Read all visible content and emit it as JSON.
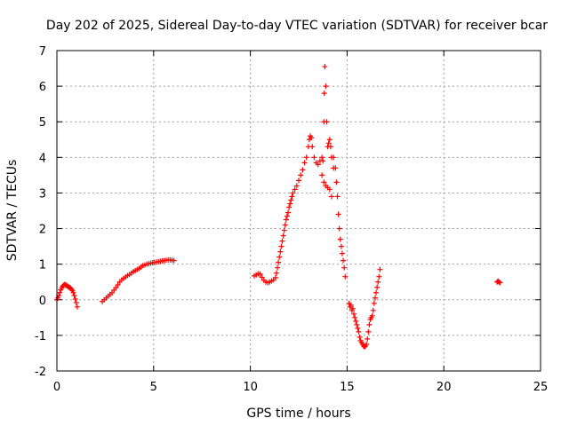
{
  "chart_data": {
    "type": "scatter",
    "title": "Day 202 of 2025, Sidereal Day-to-day VTEC variation (SDTVAR) for receiver bcar",
    "xlabel": "GPS time / hours",
    "ylabel": "SDTVAR / TECUs",
    "xlim": [
      0,
      25
    ],
    "ylim": [
      -2,
      7
    ],
    "xticks": [
      0,
      5,
      10,
      15,
      20,
      25
    ],
    "yticks": [
      -2,
      -1,
      0,
      1,
      2,
      3,
      4,
      5,
      6,
      7
    ],
    "grid": true,
    "marker": "plus",
    "series": [
      {
        "name": "SDTVAR",
        "color": "#ff0000",
        "points": [
          [
            0.0,
            0.0
          ],
          [
            0.05,
            0.05
          ],
          [
            0.1,
            0.12
          ],
          [
            0.15,
            0.2
          ],
          [
            0.2,
            0.28
          ],
          [
            0.25,
            0.33
          ],
          [
            0.3,
            0.38
          ],
          [
            0.35,
            0.41
          ],
          [
            0.4,
            0.43
          ],
          [
            0.45,
            0.42
          ],
          [
            0.5,
            0.4
          ],
          [
            0.55,
            0.38
          ],
          [
            0.6,
            0.36
          ],
          [
            0.65,
            0.35
          ],
          [
            0.7,
            0.33
          ],
          [
            0.75,
            0.3
          ],
          [
            0.8,
            0.26
          ],
          [
            0.85,
            0.2
          ],
          [
            0.9,
            0.12
          ],
          [
            0.95,
            0.02
          ],
          [
            1.0,
            -0.08
          ],
          [
            1.05,
            -0.2
          ],
          [
            2.35,
            -0.05
          ],
          [
            2.45,
            0.0
          ],
          [
            2.55,
            0.05
          ],
          [
            2.65,
            0.1
          ],
          [
            2.75,
            0.15
          ],
          [
            2.85,
            0.2
          ],
          [
            2.95,
            0.27
          ],
          [
            3.05,
            0.34
          ],
          [
            3.15,
            0.42
          ],
          [
            3.25,
            0.5
          ],
          [
            3.35,
            0.56
          ],
          [
            3.45,
            0.6
          ],
          [
            3.55,
            0.64
          ],
          [
            3.65,
            0.68
          ],
          [
            3.75,
            0.71
          ],
          [
            3.85,
            0.75
          ],
          [
            3.95,
            0.79
          ],
          [
            4.05,
            0.82
          ],
          [
            4.15,
            0.85
          ],
          [
            4.25,
            0.88
          ],
          [
            4.35,
            0.92
          ],
          [
            4.45,
            0.96
          ],
          [
            4.55,
            0.98
          ],
          [
            4.65,
            1.0
          ],
          [
            4.75,
            1.01
          ],
          [
            4.85,
            1.03
          ],
          [
            4.95,
            1.04
          ],
          [
            5.05,
            1.05
          ],
          [
            5.15,
            1.06
          ],
          [
            5.25,
            1.07
          ],
          [
            5.35,
            1.08
          ],
          [
            5.45,
            1.09
          ],
          [
            5.55,
            1.1
          ],
          [
            5.65,
            1.11
          ],
          [
            5.75,
            1.12
          ],
          [
            5.85,
            1.12
          ],
          [
            5.95,
            1.11
          ],
          [
            6.05,
            1.1
          ],
          [
            10.2,
            0.67
          ],
          [
            10.3,
            0.7
          ],
          [
            10.4,
            0.73
          ],
          [
            10.5,
            0.72
          ],
          [
            10.6,
            0.63
          ],
          [
            10.7,
            0.55
          ],
          [
            10.8,
            0.5
          ],
          [
            10.9,
            0.48
          ],
          [
            11.0,
            0.5
          ],
          [
            11.1,
            0.53
          ],
          [
            11.2,
            0.56
          ],
          [
            11.3,
            0.62
          ],
          [
            11.35,
            0.75
          ],
          [
            11.4,
            0.9
          ],
          [
            11.45,
            1.05
          ],
          [
            11.5,
            1.2
          ],
          [
            11.55,
            1.35
          ],
          [
            11.6,
            1.5
          ],
          [
            11.65,
            1.65
          ],
          [
            11.7,
            1.8
          ],
          [
            11.75,
            1.95
          ],
          [
            11.8,
            2.1
          ],
          [
            11.85,
            2.25
          ],
          [
            11.9,
            2.35
          ],
          [
            11.95,
            2.45
          ],
          [
            12.0,
            2.6
          ],
          [
            12.05,
            2.7
          ],
          [
            12.1,
            2.8
          ],
          [
            12.15,
            2.9
          ],
          [
            12.2,
            3.0
          ],
          [
            12.3,
            3.1
          ],
          [
            12.4,
            3.2
          ],
          [
            12.5,
            3.35
          ],
          [
            12.6,
            3.5
          ],
          [
            12.7,
            3.65
          ],
          [
            12.8,
            3.85
          ],
          [
            12.9,
            4.0
          ],
          [
            13.0,
            4.3
          ],
          [
            13.05,
            4.5
          ],
          [
            13.1,
            4.6
          ],
          [
            13.15,
            4.55
          ],
          [
            13.2,
            4.3
          ],
          [
            13.3,
            4.0
          ],
          [
            13.4,
            3.85
          ],
          [
            13.5,
            3.8
          ],
          [
            13.6,
            3.9
          ],
          [
            13.7,
            4.0
          ],
          [
            13.75,
            3.9
          ],
          [
            13.8,
            5.0
          ],
          [
            13.82,
            5.8
          ],
          [
            13.85,
            6.55
          ],
          [
            13.9,
            6.0
          ],
          [
            13.95,
            5.0
          ],
          [
            14.0,
            4.3
          ],
          [
            14.05,
            4.4
          ],
          [
            14.1,
            4.5
          ],
          [
            14.15,
            4.3
          ],
          [
            14.2,
            4.0
          ],
          [
            14.3,
            3.7
          ],
          [
            13.7,
            3.5
          ],
          [
            13.8,
            3.3
          ],
          [
            13.9,
            3.2
          ],
          [
            14.0,
            3.15
          ],
          [
            14.1,
            3.1
          ],
          [
            14.2,
            2.9
          ],
          [
            14.3,
            4.0
          ],
          [
            14.4,
            3.7
          ],
          [
            14.45,
            3.3
          ],
          [
            14.5,
            2.9
          ],
          [
            14.55,
            2.4
          ],
          [
            14.6,
            2.0
          ],
          [
            14.65,
            1.7
          ],
          [
            14.7,
            1.5
          ],
          [
            14.75,
            1.3
          ],
          [
            14.8,
            1.1
          ],
          [
            14.85,
            0.9
          ],
          [
            14.9,
            0.65
          ],
          [
            15.1,
            -0.1
          ],
          [
            15.15,
            -0.2
          ],
          [
            15.2,
            -0.15
          ],
          [
            15.25,
            -0.3
          ],
          [
            15.3,
            -0.25
          ],
          [
            15.35,
            -0.4
          ],
          [
            15.4,
            -0.5
          ],
          [
            15.45,
            -0.6
          ],
          [
            15.5,
            -0.7
          ],
          [
            15.55,
            -0.8
          ],
          [
            15.6,
            -0.9
          ],
          [
            15.65,
            -1.05
          ],
          [
            15.7,
            -1.15
          ],
          [
            15.75,
            -1.2
          ],
          [
            15.8,
            -1.25
          ],
          [
            15.85,
            -1.3
          ],
          [
            15.9,
            -1.32
          ],
          [
            15.95,
            -1.3
          ],
          [
            16.0,
            -1.25
          ],
          [
            16.05,
            -1.1
          ],
          [
            16.1,
            -0.9
          ],
          [
            16.15,
            -0.7
          ],
          [
            16.2,
            -0.55
          ],
          [
            16.25,
            -0.5
          ],
          [
            16.3,
            -0.45
          ],
          [
            16.35,
            -0.3
          ],
          [
            16.4,
            -0.1
          ],
          [
            16.45,
            0.05
          ],
          [
            16.5,
            0.2
          ],
          [
            16.55,
            0.35
          ],
          [
            16.6,
            0.5
          ],
          [
            16.65,
            0.65
          ],
          [
            16.7,
            0.85
          ],
          [
            22.75,
            0.5
          ],
          [
            22.8,
            0.52
          ],
          [
            22.85,
            0.5
          ],
          [
            22.9,
            0.48
          ]
        ]
      }
    ]
  }
}
